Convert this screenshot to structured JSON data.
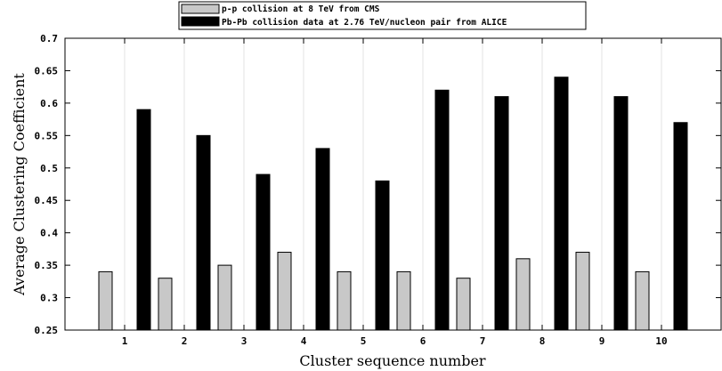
{
  "chart_data": {
    "type": "bar",
    "xlabel": "Cluster sequence number",
    "ylabel": "Average Clustering Coefficient",
    "categories": [
      "1",
      "2",
      "3",
      "4",
      "5",
      "6",
      "7",
      "8",
      "9",
      "10"
    ],
    "ylim": [
      0.25,
      0.7
    ],
    "yticks": [
      "0.25",
      "0.3",
      "0.35",
      "0.4",
      "0.45",
      "0.5",
      "0.55",
      "0.6",
      "0.65",
      "0.7"
    ],
    "grid": "vertical",
    "legend_position": "top",
    "series": [
      {
        "name": "p-p collision at 8 TeV from CMS",
        "color": "#c8c8c8",
        "values": [
          0.34,
          0.33,
          0.35,
          0.37,
          0.34,
          0.34,
          0.33,
          0.36,
          0.37,
          0.34
        ]
      },
      {
        "name": "Pb-Pb collision data at 2.76 TeV/nucleon pair from ALICE",
        "color": "#000000",
        "values": [
          0.59,
          0.55,
          0.49,
          0.53,
          0.48,
          0.62,
          0.61,
          0.64,
          0.61,
          0.57
        ]
      }
    ]
  }
}
